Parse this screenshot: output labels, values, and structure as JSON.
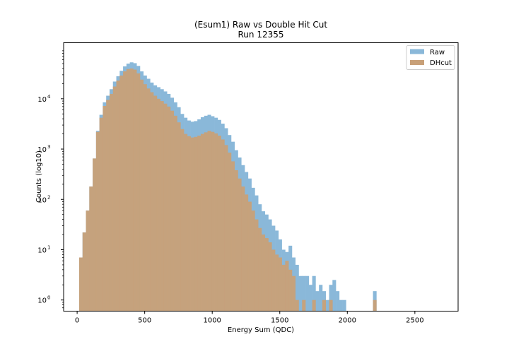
{
  "chart_data": {
    "type": "bar",
    "title": "(Esum1) Raw vs Double Hit Cut",
    "subtitle": "Run 12355",
    "xlabel": "Energy Sum (QDC)",
    "ylabel": "Counts (log10)",
    "yscale": "log",
    "xlim": [
      -100,
      2820
    ],
    "ylim": [
      0.6,
      130000
    ],
    "grid": false,
    "legend_position": "top-right",
    "xticks": [
      0,
      500,
      1000,
      1500,
      2000,
      2500
    ],
    "xtick_labels": [
      "0",
      "500",
      "1000",
      "1500",
      "2000",
      "2500"
    ],
    "yticks": [
      1,
      10,
      100,
      1000,
      10000
    ],
    "ytick_base": "10",
    "ytick_exponents": [
      "0",
      "1",
      "2",
      "3",
      "4"
    ],
    "bin_start": 15,
    "bin_width": 25,
    "series": [
      {
        "name": "Raw",
        "color": "#8ab8d9",
        "values": [
          7,
          22,
          60,
          180,
          650,
          2300,
          4800,
          8500,
          11500,
          15500,
          22000,
          28000,
          36000,
          44000,
          50000,
          53000,
          51000,
          45000,
          35000,
          29000,
          25000,
          21000,
          18500,
          17000,
          15500,
          14000,
          12500,
          10500,
          8500,
          6800,
          5000,
          4200,
          3700,
          3500,
          3600,
          3900,
          4300,
          4600,
          4800,
          4500,
          4200,
          3800,
          3200,
          2600,
          1900,
          1400,
          950,
          680,
          480,
          350,
          260,
          170,
          120,
          80,
          58,
          50,
          40,
          30,
          24,
          16,
          10,
          9,
          12,
          7,
          5,
          3,
          3,
          3,
          2,
          3,
          1.5,
          2,
          1.5,
          1,
          2,
          2.5,
          1.5,
          1,
          1,
          0,
          0,
          0,
          0,
          0,
          0,
          0,
          0,
          1.5
        ]
      },
      {
        "name": "DHcut",
        "color": "#c8a078",
        "values": [
          7,
          22,
          60,
          180,
          650,
          2200,
          4200,
          7200,
          9500,
          12500,
          17500,
          23000,
          29000,
          35000,
          39000,
          40000,
          38000,
          32000,
          24000,
          19500,
          16000,
          13500,
          11500,
          10000,
          9000,
          8000,
          7000,
          5800,
          4600,
          3400,
          2500,
          2000,
          1800,
          1700,
          1750,
          1850,
          2000,
          2150,
          2300,
          2200,
          2050,
          1850,
          1550,
          1200,
          850,
          570,
          380,
          260,
          180,
          125,
          90,
          60,
          40,
          27,
          20,
          17,
          14,
          10,
          8,
          7,
          5,
          6,
          4,
          3,
          1,
          0,
          1,
          0,
          0,
          1,
          0,
          0,
          1,
          0,
          1,
          0,
          0,
          0,
          0,
          0,
          0,
          0,
          0,
          0,
          0,
          0,
          0,
          1
        ]
      }
    ]
  }
}
